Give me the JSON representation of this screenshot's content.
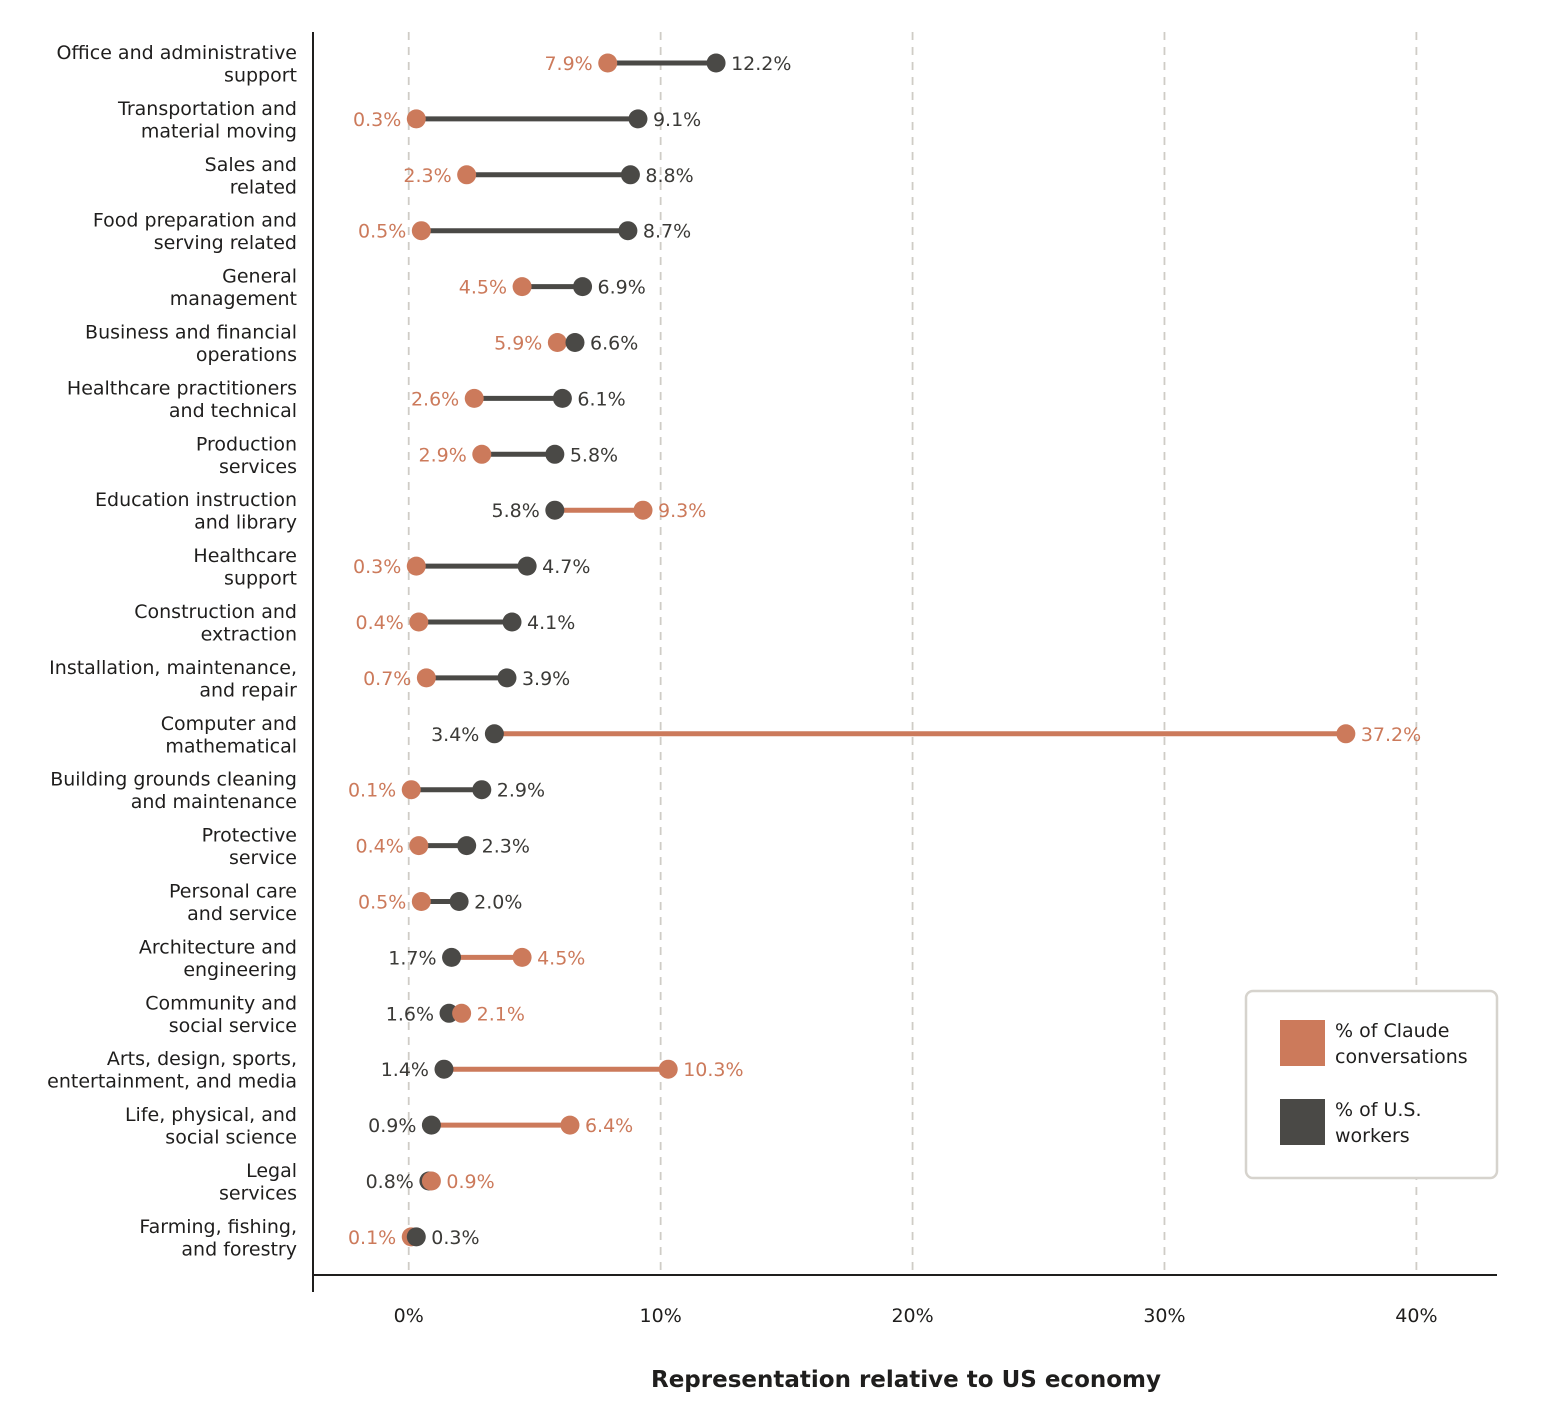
{
  "chart_data": {
    "type": "dumbbell",
    "title": "",
    "xlabel": "Representation relative to US economy",
    "ylabel": "",
    "xlim": [
      -3.8,
      43.2
    ],
    "xticks": [
      0,
      10,
      20,
      30,
      40
    ],
    "xtick_labels": [
      "0%",
      "10%",
      "20%",
      "30%",
      "40%"
    ],
    "grid": "vertical dashed",
    "legend_position": "bottom-right",
    "colors": {
      "claude": "#cc7a5b",
      "workers": "#4a4946"
    },
    "series": [
      {
        "key": "claude",
        "name": "% of Claude conversations"
      },
      {
        "key": "workers",
        "name": "% of U.S. workers"
      }
    ],
    "categories": [
      {
        "lines": [
          "Office and administrative",
          "support"
        ],
        "claude": 7.9,
        "claude_label": "7.9%",
        "workers": 12.2,
        "workers_label": "12.2%"
      },
      {
        "lines": [
          "Transportation and",
          "material moving"
        ],
        "claude": 0.3,
        "claude_label": "0.3%",
        "workers": 9.1,
        "workers_label": "9.1%"
      },
      {
        "lines": [
          "Sales and",
          "related"
        ],
        "claude": 2.3,
        "claude_label": "2.3%",
        "workers": 8.8,
        "workers_label": "8.8%"
      },
      {
        "lines": [
          "Food preparation and",
          "serving related"
        ],
        "claude": 0.5,
        "claude_label": "0.5%",
        "workers": 8.7,
        "workers_label": "8.7%"
      },
      {
        "lines": [
          "General",
          "management"
        ],
        "claude": 4.5,
        "claude_label": "4.5%",
        "workers": 6.9,
        "workers_label": "6.9%"
      },
      {
        "lines": [
          "Business and financial",
          "operations"
        ],
        "claude": 5.9,
        "claude_label": "5.9%",
        "workers": 6.6,
        "workers_label": "6.6%"
      },
      {
        "lines": [
          "Healthcare practitioners",
          "and technical"
        ],
        "claude": 2.6,
        "claude_label": "2.6%",
        "workers": 6.1,
        "workers_label": "6.1%"
      },
      {
        "lines": [
          "Production",
          "services"
        ],
        "claude": 2.9,
        "claude_label": "2.9%",
        "workers": 5.8,
        "workers_label": "5.8%"
      },
      {
        "lines": [
          "Education instruction",
          "and library"
        ],
        "claude": 9.3,
        "claude_label": "9.3%",
        "workers": 5.8,
        "workers_label": "5.8%"
      },
      {
        "lines": [
          "Healthcare",
          "support"
        ],
        "claude": 0.3,
        "claude_label": "0.3%",
        "workers": 4.7,
        "workers_label": "4.7%"
      },
      {
        "lines": [
          "Construction and",
          "extraction"
        ],
        "claude": 0.4,
        "claude_label": "0.4%",
        "workers": 4.1,
        "workers_label": "4.1%"
      },
      {
        "lines": [
          "Installation, maintenance,",
          "and repair"
        ],
        "claude": 0.7,
        "claude_label": "0.7%",
        "workers": 3.9,
        "workers_label": "3.9%"
      },
      {
        "lines": [
          "Computer and",
          "mathematical"
        ],
        "claude": 37.2,
        "claude_label": "37.2%",
        "workers": 3.4,
        "workers_label": "3.4%"
      },
      {
        "lines": [
          "Building grounds cleaning",
          "and maintenance"
        ],
        "claude": 0.1,
        "claude_label": "0.1%",
        "workers": 2.9,
        "workers_label": "2.9%"
      },
      {
        "lines": [
          "Protective",
          "service"
        ],
        "claude": 0.4,
        "claude_label": "0.4%",
        "workers": 2.3,
        "workers_label": "2.3%"
      },
      {
        "lines": [
          "Personal care",
          "and service"
        ],
        "claude": 0.5,
        "claude_label": "0.5%",
        "workers": 2.0,
        "workers_label": "2.0%"
      },
      {
        "lines": [
          "Architecture and",
          "engineering"
        ],
        "claude": 4.5,
        "claude_label": "4.5%",
        "workers": 1.7,
        "workers_label": "1.7%"
      },
      {
        "lines": [
          "Community and",
          "social service"
        ],
        "claude": 2.1,
        "claude_label": "2.1%",
        "workers": 1.6,
        "workers_label": "1.6%"
      },
      {
        "lines": [
          "Arts, design, sports,",
          "entertainment, and media"
        ],
        "claude": 10.3,
        "claude_label": "10.3%",
        "workers": 1.4,
        "workers_label": "1.4%"
      },
      {
        "lines": [
          "Life, physical, and",
          "social science"
        ],
        "claude": 6.4,
        "claude_label": "6.4%",
        "workers": 0.9,
        "workers_label": "0.9%"
      },
      {
        "lines": [
          "Legal",
          "services"
        ],
        "claude": 0.9,
        "claude_label": "0.9%",
        "workers": 0.8,
        "workers_label": "0.8%"
      },
      {
        "lines": [
          "Farming, fishing,",
          "and forestry"
        ],
        "claude": 0.1,
        "claude_label": "0.1%",
        "workers": 0.3,
        "workers_label": "0.3%"
      }
    ]
  }
}
